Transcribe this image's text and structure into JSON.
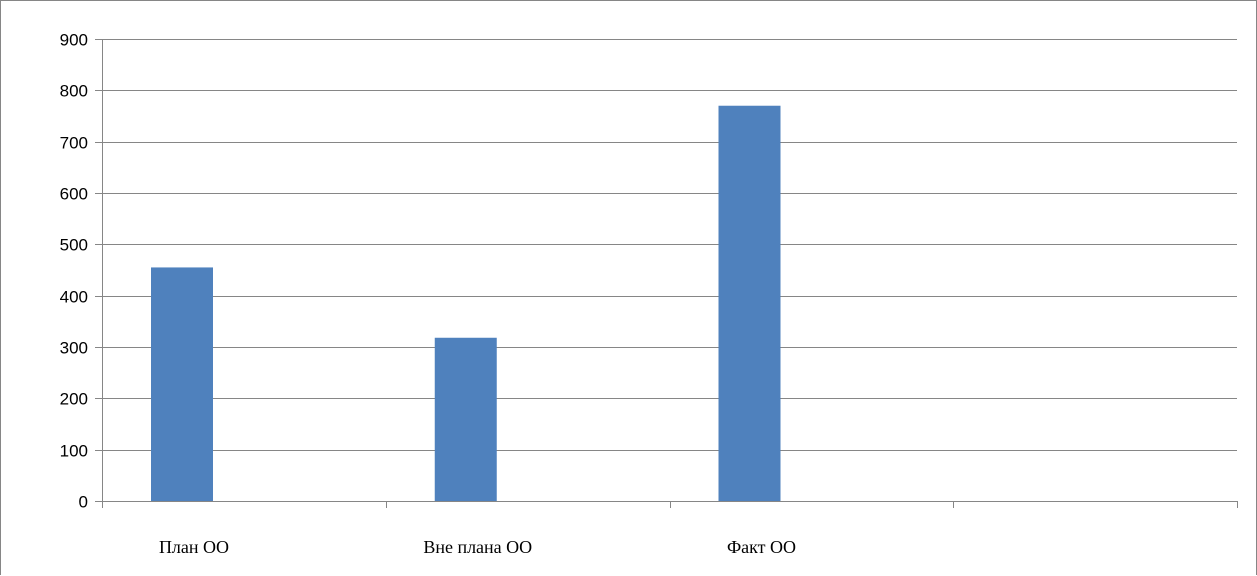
{
  "chart_data": {
    "type": "bar",
    "categories": [
      "План ОО",
      "Вне плана ОО",
      "Факт ОО",
      ""
    ],
    "series": [
      {
        "values": [
          455,
          318,
          770,
          null
        ],
        "color": "#4f81bd"
      }
    ],
    "title": "",
    "xlabel": "",
    "ylabel": "",
    "ylim": [
      0,
      900
    ],
    "yticks": [
      0,
      100,
      200,
      300,
      400,
      500,
      600,
      700,
      800,
      900
    ],
    "grid": true,
    "gridline_color": "#868686",
    "legend": "none"
  }
}
